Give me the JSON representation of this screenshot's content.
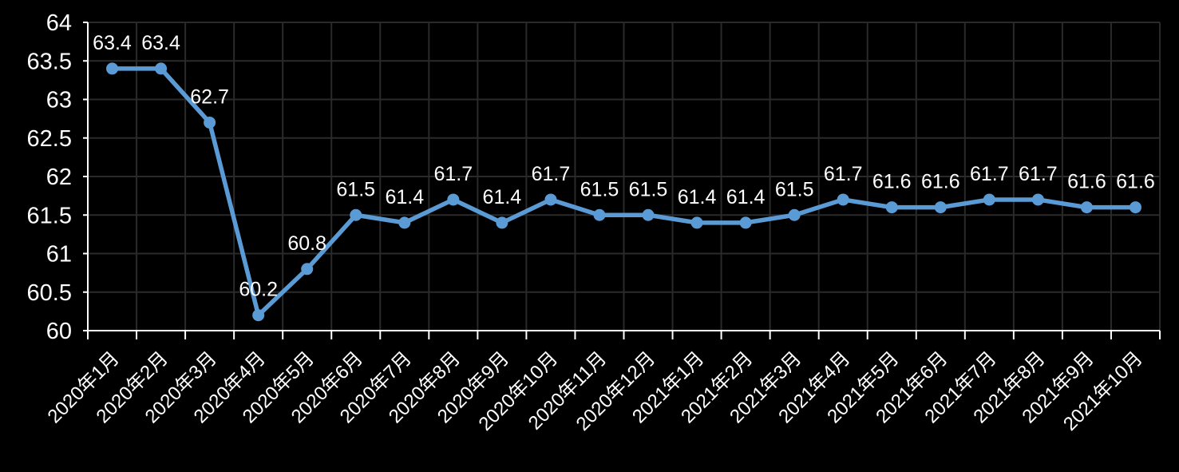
{
  "chart_data": {
    "type": "line",
    "title": "",
    "xlabel": "",
    "ylabel": "",
    "categories": [
      "2020年1月",
      "2020年2月",
      "2020年3月",
      "2020年4月",
      "2020年5月",
      "2020年6月",
      "2020年7月",
      "2020年8月",
      "2020年9月",
      "2020年10月",
      "2020年11月",
      "2020年12月",
      "2021年1月",
      "2021年2月",
      "2021年3月",
      "2021年4月",
      "2021年5月",
      "2021年6月",
      "2021年7月",
      "2021年8月",
      "2021年9月",
      "2021年10月"
    ],
    "series": [
      {
        "name": "",
        "values": [
          63.4,
          63.4,
          62.7,
          60.2,
          60.8,
          61.5,
          61.4,
          61.7,
          61.4,
          61.7,
          61.5,
          61.5,
          61.4,
          61.4,
          61.5,
          61.7,
          61.6,
          61.6,
          61.7,
          61.7,
          61.6,
          61.6
        ],
        "data_labels": [
          "63.4",
          "63.4",
          "62.7",
          "60.2",
          "60.8",
          "61.5",
          "61.4",
          "61.7",
          "61.4",
          "61.7",
          "61.5",
          "61.5",
          "61.4",
          "61.4",
          "61.5",
          "61.7",
          "61.6",
          "61.6",
          "61.7",
          "61.7",
          "61.6",
          "61.6"
        ]
      }
    ],
    "ylim": [
      60,
      64
    ],
    "y_ticks": [
      {
        "value": 60,
        "label": "60"
      },
      {
        "value": 60.5,
        "label": "60.5"
      },
      {
        "value": 61,
        "label": "61"
      },
      {
        "value": 61.5,
        "label": "61.5"
      },
      {
        "value": 62,
        "label": "62"
      },
      {
        "value": 62.5,
        "label": "62.5"
      },
      {
        "value": 63,
        "label": "63"
      },
      {
        "value": 63.5,
        "label": "63.5"
      },
      {
        "value": 64,
        "label": "64"
      }
    ],
    "grid": true,
    "legend": "none",
    "x_label_rotation_deg": 45,
    "colors": {
      "background": "#000000",
      "line": "#5B9BD5",
      "marker": "#5B9BD5",
      "gridline": "#2a2a2a",
      "axis": "#ffffff",
      "text": "#ffffff"
    }
  }
}
